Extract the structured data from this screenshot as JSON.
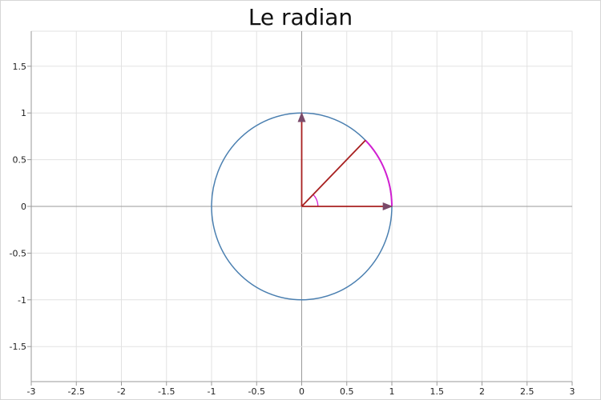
{
  "chart_data": {
    "type": "line",
    "title": "Le radian",
    "xlabel": "",
    "ylabel": "",
    "xlim": [
      -3,
      3
    ],
    "ylim": [
      -1.875,
      1.875
    ],
    "x_ticks": [
      -3,
      -2.5,
      -2,
      -1.5,
      -1,
      -0.5,
      0,
      0.5,
      1,
      1.5,
      2,
      2.5,
      3
    ],
    "y_ticks": [
      -1.5,
      -1,
      -0.5,
      0,
      0.5,
      1,
      1.5
    ],
    "x_tick_labels": [
      "-3",
      "-2.5",
      "-2",
      "-1.5",
      "-1",
      "-0.5",
      "0",
      "0.5",
      "1",
      "1.5",
      "2",
      "2.5",
      "3"
    ],
    "y_tick_labels": [
      "-1.5",
      "-1",
      "-0.5",
      "0",
      "0.5",
      "1",
      "1.5"
    ],
    "grid": true,
    "elements": [
      {
        "kind": "circle",
        "center": [
          0,
          0
        ],
        "radius": 1,
        "color": "#4a7fb0"
      },
      {
        "kind": "arc",
        "center": [
          0,
          0
        ],
        "radius": 1,
        "start_angle": 0,
        "end_angle": 0.785,
        "color": "#d11fd1"
      },
      {
        "kind": "angle-arc",
        "center": [
          0,
          0
        ],
        "radius": 0.18,
        "start_angle": 0,
        "end_angle": 0.785,
        "color": "#d11fd1"
      },
      {
        "kind": "vector",
        "from": [
          0,
          0
        ],
        "to": [
          1,
          0
        ],
        "color": "#a82020"
      },
      {
        "kind": "vector",
        "from": [
          0,
          0
        ],
        "to": [
          0,
          1
        ],
        "color": "#a82020"
      },
      {
        "kind": "segment",
        "from": [
          0,
          0
        ],
        "to": [
          0.707,
          0.707
        ],
        "color": "#a82020"
      }
    ]
  }
}
